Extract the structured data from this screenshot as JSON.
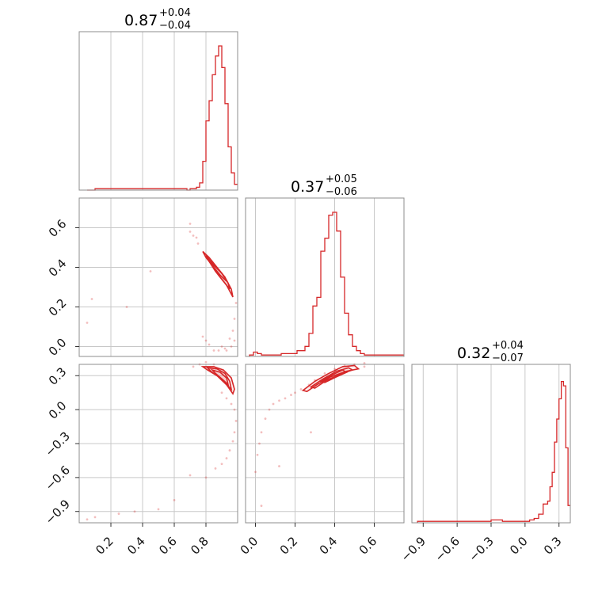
{
  "colors": {
    "series": "#d62728",
    "grid": "#c8c8c8",
    "frame": "#8c8c8c"
  },
  "chart_data": {
    "type": "corner",
    "parameters": [
      {
        "median": "0.87",
        "plus": "+0.04",
        "minus": "−0.04",
        "range": [
          0.0,
          1.0
        ],
        "ticks": [
          0.2,
          0.4,
          0.6,
          0.8
        ],
        "tick_labels": [
          "0.2",
          "0.4",
          "0.6",
          "0.8"
        ]
      },
      {
        "median": "0.37",
        "plus": "+0.05",
        "minus": "−0.06",
        "range": [
          -0.05,
          0.75
        ],
        "ticks": [
          0.0,
          0.2,
          0.4,
          0.6
        ],
        "tick_labels": [
          "0.0",
          "0.2",
          "0.4",
          "0.6"
        ]
      },
      {
        "median": "0.32",
        "plus": "+0.04",
        "minus": "−0.07",
        "range": [
          -1.0,
          0.4
        ],
        "ticks": [
          -0.9,
          -0.6,
          -0.3,
          0.0,
          0.3
        ],
        "tick_labels": [
          "−0.9",
          "−0.6",
          "−0.3",
          "0.0",
          "0.3"
        ]
      }
    ],
    "histograms": [
      {
        "x": [
          0.05,
          0.1,
          0.3,
          0.68,
          0.7,
          0.72,
          0.74,
          0.76,
          0.78,
          0.8,
          0.82,
          0.84,
          0.86,
          0.88,
          0.9,
          0.92,
          0.94,
          0.96,
          0.98
        ],
        "y": [
          0.0,
          0.01,
          0.01,
          0.0,
          0.01,
          0.01,
          0.02,
          0.05,
          0.2,
          0.48,
          0.62,
          0.8,
          0.93,
          1.0,
          0.85,
          0.6,
          0.3,
          0.12,
          0.04
        ]
      },
      {
        "x": [
          -0.03,
          -0.01,
          0.01,
          0.03,
          0.05,
          0.13,
          0.17,
          0.21,
          0.25,
          0.27,
          0.29,
          0.31,
          0.33,
          0.35,
          0.37,
          0.39,
          0.41,
          0.43,
          0.45,
          0.47,
          0.49,
          0.51,
          0.53,
          0.55,
          0.57
        ],
        "y": [
          0.01,
          0.03,
          0.02,
          0.01,
          0.01,
          0.02,
          0.02,
          0.04,
          0.07,
          0.16,
          0.35,
          0.41,
          0.73,
          0.82,
          0.98,
          1.0,
          0.87,
          0.55,
          0.3,
          0.15,
          0.07,
          0.04,
          0.02,
          0.01,
          0.01
        ]
      },
      {
        "x": [
          -0.95,
          -0.9,
          -0.8,
          -0.7,
          -0.6,
          -0.5,
          -0.4,
          -0.3,
          -0.2,
          -0.1,
          0.0,
          0.04,
          0.08,
          0.12,
          0.16,
          0.2,
          0.22,
          0.24,
          0.26,
          0.28,
          0.3,
          0.32,
          0.34,
          0.36,
          0.38
        ],
        "y": [
          0.01,
          0.01,
          0.01,
          0.01,
          0.01,
          0.01,
          0.01,
          0.02,
          0.01,
          0.01,
          0.01,
          0.02,
          0.03,
          0.06,
          0.13,
          0.15,
          0.25,
          0.35,
          0.56,
          0.72,
          0.86,
          0.98,
          0.95,
          0.52,
          0.12
        ]
      }
    ],
    "contours": [
      {
        "row": 1,
        "col": 0,
        "levels": [
          {
            "x": [
              0.78,
              0.82,
              0.87,
              0.92,
              0.96,
              0.97,
              0.93,
              0.88,
              0.84,
              0.8
            ],
            "y": [
              0.48,
              0.45,
              0.4,
              0.35,
              0.29,
              0.25,
              0.31,
              0.36,
              0.41,
              0.45
            ]
          },
          {
            "x": [
              0.8,
              0.85,
              0.9,
              0.94,
              0.95,
              0.91,
              0.86,
              0.82
            ],
            "y": [
              0.46,
              0.41,
              0.37,
              0.32,
              0.29,
              0.33,
              0.38,
              0.43
            ]
          },
          {
            "x": [
              0.83,
              0.88,
              0.92,
              0.93,
              0.89,
              0.85
            ],
            "y": [
              0.43,
              0.39,
              0.35,
              0.33,
              0.36,
              0.4
            ]
          }
        ]
      },
      {
        "row": 2,
        "col": 0,
        "levels": [
          {
            "x": [
              0.78,
              0.85,
              0.91,
              0.96,
              0.98,
              0.97,
              0.93,
              0.87,
              0.81
            ],
            "y": [
              0.38,
              0.38,
              0.35,
              0.28,
              0.18,
              0.14,
              0.22,
              0.3,
              0.35
            ]
          },
          {
            "x": [
              0.81,
              0.87,
              0.92,
              0.95,
              0.96,
              0.93,
              0.88,
              0.83
            ],
            "y": [
              0.37,
              0.36,
              0.32,
              0.25,
              0.18,
              0.22,
              0.29,
              0.34
            ]
          },
          {
            "x": [
              0.84,
              0.89,
              0.93,
              0.94,
              0.91,
              0.86
            ],
            "y": [
              0.35,
              0.33,
              0.28,
              0.22,
              0.26,
              0.32
            ]
          }
        ]
      },
      {
        "row": 2,
        "col": 1,
        "levels": [
          {
            "x": [
              0.24,
              0.3,
              0.37,
              0.44,
              0.5,
              0.52,
              0.46,
              0.38,
              0.31,
              0.26
            ],
            "y": [
              0.17,
              0.25,
              0.32,
              0.38,
              0.39,
              0.36,
              0.34,
              0.29,
              0.22,
              0.16
            ]
          },
          {
            "x": [
              0.28,
              0.34,
              0.41,
              0.47,
              0.49,
              0.44,
              0.36,
              0.3
            ],
            "y": [
              0.2,
              0.27,
              0.34,
              0.37,
              0.35,
              0.32,
              0.26,
              0.19
            ]
          },
          {
            "x": [
              0.33,
              0.39,
              0.44,
              0.46,
              0.41,
              0.35
            ],
            "y": [
              0.25,
              0.31,
              0.35,
              0.33,
              0.29,
              0.24
            ]
          }
        ]
      }
    ],
    "scatter": [
      {
        "row": 1,
        "col": 0,
        "x": [
          0.05,
          0.08,
          0.3,
          0.45,
          0.7,
          0.72,
          0.75,
          0.9,
          0.93,
          0.95,
          0.97,
          0.98,
          0.99,
          0.98,
          0.96,
          0.92,
          0.88,
          0.85,
          0.82,
          0.8,
          0.78,
          0.74,
          0.7
        ],
        "y": [
          0.12,
          0.24,
          0.2,
          0.38,
          0.62,
          0.56,
          0.52,
          0.0,
          -0.02,
          0.04,
          0.08,
          0.14,
          0.22,
          0.03,
          0.0,
          -0.01,
          -0.02,
          -0.02,
          0.01,
          0.03,
          0.05,
          0.55,
          0.58
        ]
      },
      {
        "row": 2,
        "col": 0,
        "x": [
          0.05,
          0.1,
          0.25,
          0.35,
          0.5,
          0.6,
          0.7,
          0.8,
          0.86,
          0.9,
          0.93,
          0.95,
          0.97,
          0.98,
          0.99,
          0.98,
          0.96,
          0.93,
          0.9,
          0.85,
          0.8,
          0.76,
          0.72
        ],
        "y": [
          -0.97,
          -0.95,
          -0.92,
          -0.9,
          -0.88,
          -0.8,
          -0.58,
          -0.6,
          -0.52,
          -0.48,
          -0.43,
          -0.36,
          -0.28,
          -0.2,
          -0.1,
          0.0,
          0.05,
          0.1,
          0.15,
          0.4,
          0.42,
          0.4,
          0.38
        ]
      },
      {
        "row": 2,
        "col": 1,
        "x": [
          0.0,
          0.01,
          0.02,
          0.03,
          0.05,
          0.07,
          0.09,
          0.12,
          0.15,
          0.18,
          0.2,
          0.23,
          0.27,
          0.3,
          0.35,
          0.4,
          0.45,
          0.5,
          0.55,
          0.12,
          0.28,
          0.03,
          0.55
        ],
        "y": [
          -0.55,
          -0.4,
          -0.3,
          -0.2,
          -0.08,
          0.0,
          0.05,
          0.08,
          0.1,
          0.13,
          0.15,
          0.18,
          0.22,
          0.26,
          0.32,
          0.36,
          0.39,
          0.4,
          0.41,
          -0.5,
          -0.2,
          -0.85,
          0.38
        ]
      }
    ]
  }
}
